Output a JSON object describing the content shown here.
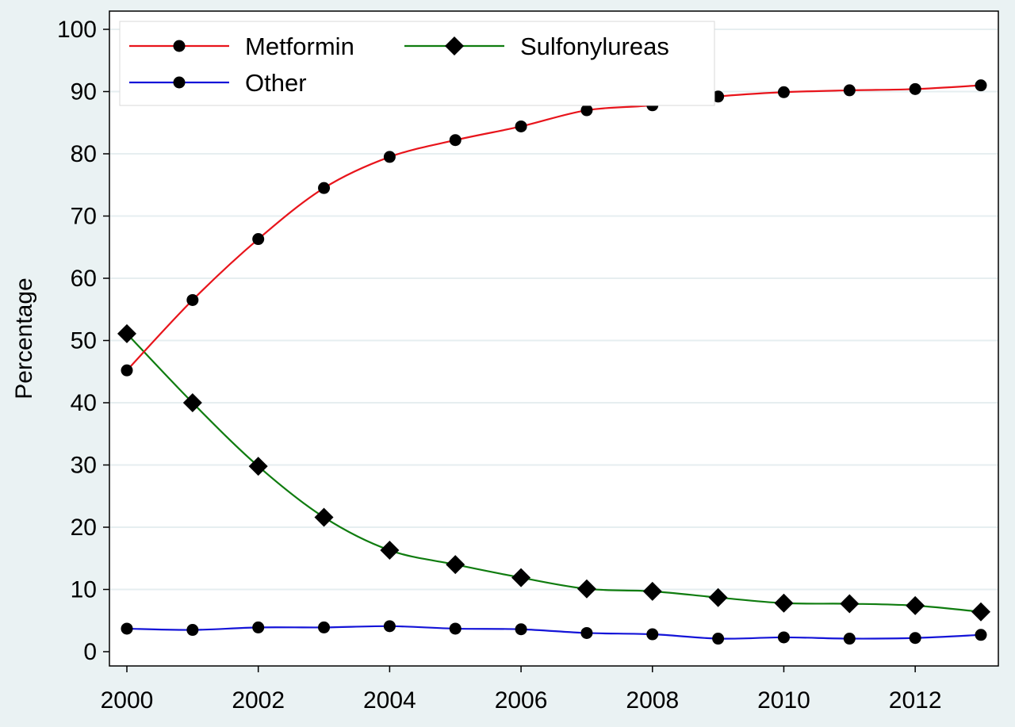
{
  "chart_data": {
    "type": "line",
    "x": [
      2000,
      2001,
      2002,
      2003,
      2004,
      2005,
      2006,
      2007,
      2008,
      2009,
      2010,
      2011,
      2012,
      2013
    ],
    "x_ticks": [
      2000,
      2002,
      2004,
      2006,
      2008,
      2010,
      2012
    ],
    "y_ticks": [
      0,
      10,
      20,
      30,
      40,
      50,
      60,
      70,
      80,
      90,
      100
    ],
    "xlim": [
      2000,
      2013
    ],
    "ylim": [
      0,
      100
    ],
    "xlabel": "",
    "ylabel": "Percentage",
    "grid": "horizontal",
    "legend_position": "top-left",
    "series": [
      {
        "name": "Metformin",
        "color": "#e8141b",
        "marker": "circle",
        "values": [
          45.2,
          56.5,
          66.3,
          74.5,
          79.5,
          82.2,
          84.4,
          87.0,
          87.8,
          89.2,
          89.9,
          90.2,
          90.4,
          91.0
        ]
      },
      {
        "name": "Sulfonylureas",
        "color": "#0f7c0f",
        "marker": "diamond",
        "values": [
          51.1,
          40.0,
          29.8,
          21.6,
          16.3,
          14.0,
          11.9,
          10.1,
          9.7,
          8.7,
          7.8,
          7.7,
          7.4,
          6.4
        ]
      },
      {
        "name": "Other",
        "color": "#1414d8",
        "marker": "circle",
        "values": [
          3.7,
          3.5,
          3.9,
          3.9,
          4.1,
          3.7,
          3.6,
          3.0,
          2.8,
          2.1,
          2.3,
          2.1,
          2.2,
          2.7
        ]
      }
    ]
  }
}
